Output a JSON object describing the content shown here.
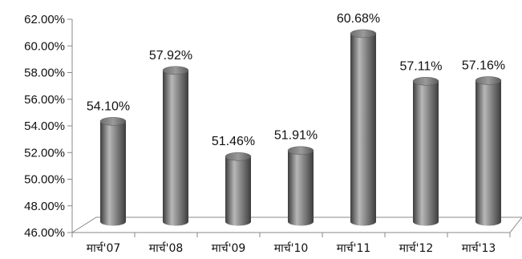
{
  "chart_data": {
    "type": "bar",
    "style": "3d-cylinder",
    "categories": [
      "मार्च'07",
      "मार्च'08",
      "मार्च'09",
      "मार्च'10",
      "मार्च'11",
      "मार्च'12",
      "मार्च'13"
    ],
    "series": [
      {
        "values": [
          54.1,
          57.92,
          51.46,
          51.91,
          60.68,
          57.11,
          57.16
        ]
      }
    ],
    "data_labels": [
      "54.10%",
      "57.92%",
      "51.46%",
      "51.91%",
      "60.68%",
      "57.11%",
      "57.16%"
    ],
    "yticks": [
      "46.00%",
      "48.00%",
      "50.00%",
      "52.00%",
      "54.00%",
      "56.00%",
      "58.00%",
      "60.00%",
      "62.00%"
    ],
    "ylim": [
      46,
      62
    ],
    "ystep": 2,
    "grid": false,
    "legend": "none",
    "colors": {
      "bar": "#7a7a7a",
      "bar_light": "#b8b8b8",
      "bar_dark": "#3c3c3c",
      "axis": "#888888"
    }
  }
}
